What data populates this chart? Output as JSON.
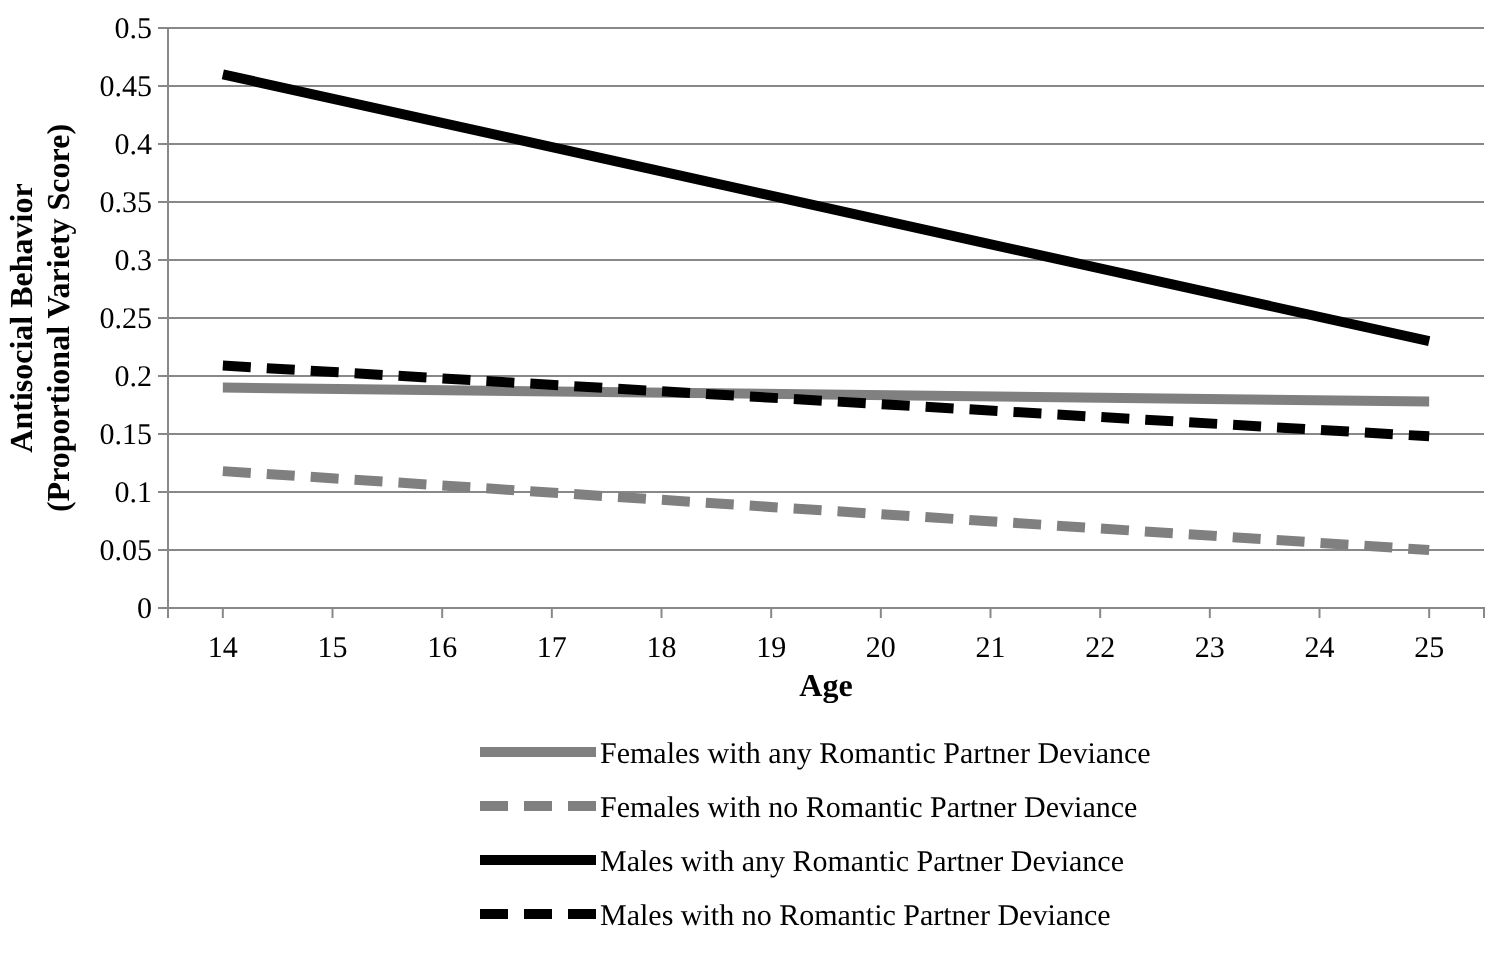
{
  "chart_data": {
    "type": "line",
    "xlabel": "Age",
    "ylabel": "Antisocial Behavior\n(Proportional Variety Score)",
    "xlim": [
      13.5,
      25.5
    ],
    "xticks": [
      14,
      15,
      16,
      17,
      18,
      19,
      20,
      21,
      22,
      23,
      24,
      25
    ],
    "ylim": [
      0,
      0.5
    ],
    "yticks": [
      0,
      0.05,
      0.1,
      0.15,
      0.2,
      0.25,
      0.3,
      0.35,
      0.4,
      0.45,
      0.5
    ],
    "grid": "y",
    "legend": "bottom",
    "marker": "none",
    "x": [
      14,
      25
    ],
    "series": [
      {
        "name": "Females with any Romantic Partner Deviance",
        "color": "#808080",
        "line_style": "solid",
        "values": [
          0.19,
          0.178
        ]
      },
      {
        "name": "Females with no Romantic Partner Deviance",
        "color": "#808080",
        "line_style": "dashed",
        "values": [
          0.118,
          0.05
        ]
      },
      {
        "name": "Males with any Romantic Partner Deviance",
        "color": "#000000",
        "line_style": "solid",
        "values": [
          0.46,
          0.23
        ]
      },
      {
        "name": "Males with no Romantic Partner Deviance",
        "color": "#000000",
        "line_style": "dashed",
        "values": [
          0.209,
          0.148
        ]
      }
    ]
  }
}
